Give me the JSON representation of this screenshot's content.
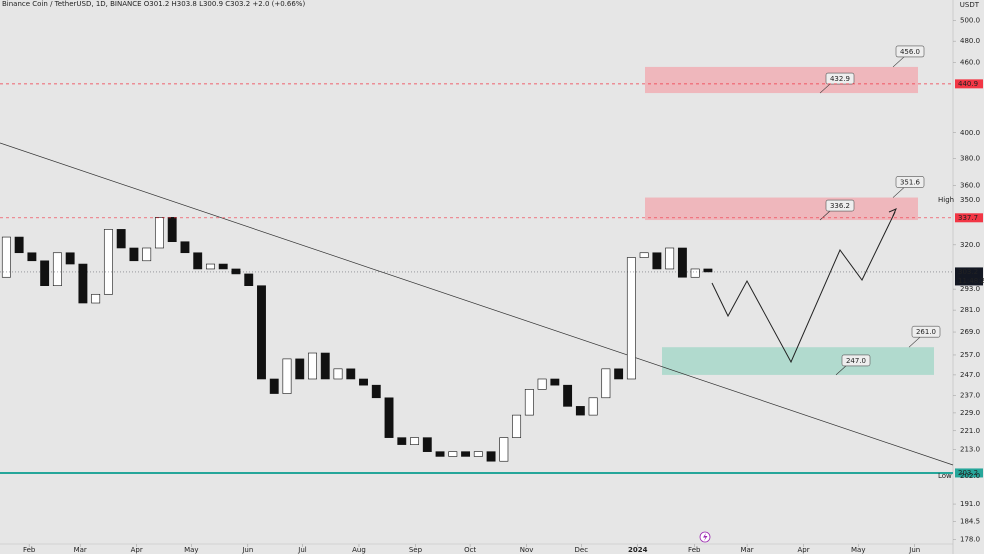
{
  "header": "Binance Coin / TetherUSD, 1D, BINANCE  O301.2  H303.8  L300.9  C303.2  +2.0 (+0.66%)",
  "chart_data": {
    "type": "candlestick",
    "currency": "USDT",
    "log_scale": true,
    "grid": false,
    "ylim": [
      176.4,
      521
    ],
    "yticks": [
      {
        "value": 500,
        "label": "500.0"
      },
      {
        "value": 480,
        "label": "480.0"
      },
      {
        "value": 460,
        "label": "460.0"
      },
      {
        "value": 400,
        "label": "400.0"
      },
      {
        "value": 380,
        "label": "380.0"
      },
      {
        "value": 360,
        "label": "360.0"
      },
      {
        "value": 320,
        "label": "320.0"
      },
      {
        "value": 293,
        "label": "293.0"
      },
      {
        "value": 281,
        "label": "281.0"
      },
      {
        "value": 269,
        "label": "269.0"
      },
      {
        "value": 257,
        "label": "257.0"
      },
      {
        "value": 247,
        "label": "247.0"
      },
      {
        "value": 237,
        "label": "237.0"
      },
      {
        "value": 229,
        "label": "229.0"
      },
      {
        "value": 221,
        "label": "221.0"
      },
      {
        "value": 213,
        "label": "213.0"
      },
      {
        "value": 191,
        "label": "191.0"
      },
      184.5,
      {
        "value": 178,
        "label": "178.0"
      }
    ],
    "xlim": [
      0,
      523
    ],
    "xticks": [
      {
        "value": 16,
        "label": "Feb"
      },
      {
        "value": 44,
        "label": "Mar"
      },
      {
        "value": 75,
        "label": "Apr"
      },
      {
        "value": 105,
        "label": "May"
      },
      {
        "value": 136,
        "label": "Jun"
      },
      {
        "value": 166,
        "label": "Jul"
      },
      {
        "value": 197,
        "label": "Aug"
      },
      {
        "value": 228,
        "label": "Sep"
      },
      {
        "value": 258,
        "label": "Oct"
      },
      {
        "value": 289,
        "label": "Nov"
      },
      {
        "value": 319,
        "label": "Dec"
      },
      {
        "value": 350,
        "label": "2024"
      },
      {
        "value": 381,
        "label": "Feb"
      },
      {
        "value": 410,
        "label": "Mar"
      },
      {
        "value": 441,
        "label": "Apr"
      },
      {
        "value": 471,
        "label": "May"
      },
      {
        "value": 502,
        "label": "Jun"
      }
    ],
    "x": [
      0,
      7,
      14,
      21,
      28,
      35,
      42,
      49,
      56,
      63,
      70,
      77,
      84,
      91,
      98,
      105,
      112,
      119,
      126,
      133,
      140,
      147,
      154,
      161,
      168,
      175,
      182,
      189,
      196,
      203,
      210,
      217,
      224,
      231,
      238,
      245,
      252,
      259,
      266,
      273,
      280,
      287,
      294,
      301,
      308,
      315,
      322,
      329,
      336,
      343,
      350,
      357,
      364,
      371,
      378,
      385
    ],
    "open": [
      300,
      325,
      315,
      310,
      295,
      315,
      308,
      285,
      290,
      330,
      318,
      310,
      318,
      338,
      322,
      315,
      305,
      308,
      305,
      302,
      295,
      245,
      238,
      255,
      245,
      258,
      245,
      250,
      245,
      242,
      236,
      218,
      215,
      218,
      212,
      210,
      212,
      210,
      212,
      208,
      218,
      228,
      240,
      245,
      242,
      232,
      228,
      236,
      250,
      245,
      312,
      315,
      305,
      318,
      300,
      305
    ],
    "high": {
      "text": "High",
      "value": 350,
      "label": "350.0"
    },
    "low": {
      "text": "Low",
      "value": 202,
      "label": "202.0"
    },
    "close": [
      325,
      315,
      310,
      295,
      315,
      308,
      285,
      290,
      330,
      318,
      310,
      318,
      338,
      322,
      315,
      305,
      308,
      305,
      302,
      295,
      245,
      238,
      255,
      245,
      258,
      245,
      250,
      245,
      242,
      236,
      218,
      215,
      218,
      212,
      210,
      212,
      210,
      212,
      208,
      218,
      228,
      240,
      245,
      242,
      232,
      228,
      236,
      250,
      245,
      312,
      315,
      305,
      318,
      300,
      305,
      303.2
    ],
    "price_lines": [
      {
        "value": 440.9,
        "color": "#f23645",
        "style": "dashed"
      },
      {
        "value": 337.7,
        "color": "#f23645",
        "style": "dashed"
      },
      {
        "value": 303.2,
        "color": "#131722",
        "style": "dotted",
        "countdown": "11:48:21"
      },
      {
        "value": 203.2,
        "color": "#26a69a",
        "style": "solid"
      }
    ],
    "zones": [
      {
        "color": "#f1a7ad",
        "top": {
          "value": 456,
          "label": "456.0"
        },
        "bottom": {
          "value": 432.9,
          "label": "432.9"
        }
      },
      {
        "color": "#f1a7ad",
        "top": {
          "value": 351.6,
          "label": "351.6"
        },
        "bottom": {
          "value": 336.2,
          "label": "336.2"
        }
      },
      {
        "color": "#9fd6c6",
        "top": {
          "value": 261,
          "label": "261.0"
        },
        "bottom": {
          "value": 247,
          "label": "247.0"
        }
      }
    ]
  }
}
